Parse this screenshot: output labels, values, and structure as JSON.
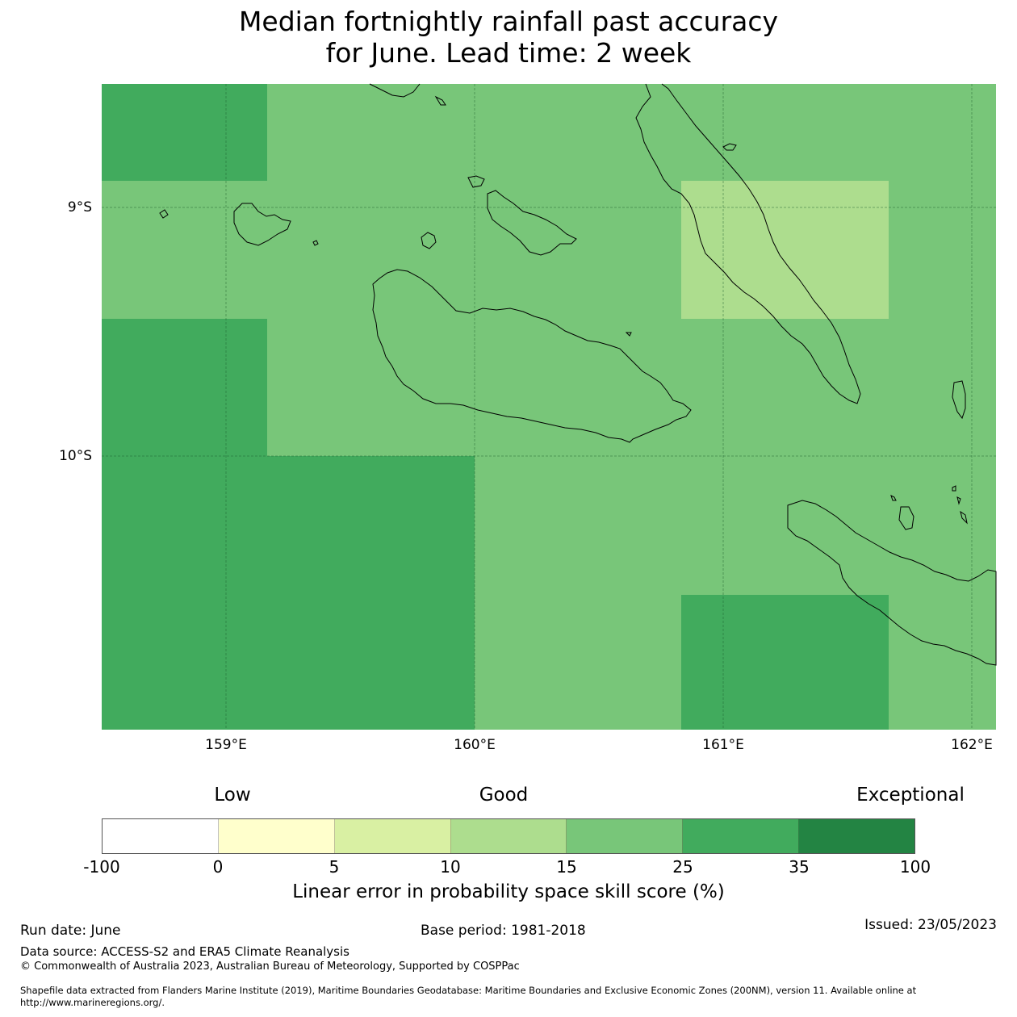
{
  "title": {
    "line1": "Median fortnightly rainfall past accuracy",
    "line2": "for June. Lead time: 2 week"
  },
  "map": {
    "lat_ticks": [
      "9°S",
      "10°S"
    ],
    "lon_ticks": [
      "159°E",
      "160°E",
      "161°E",
      "162°E"
    ]
  },
  "legend": {
    "categories": {
      "low": "Low",
      "good": "Good",
      "exceptional": "Exceptional"
    },
    "ticks": [
      "-100",
      "0",
      "5",
      "10",
      "15",
      "25",
      "35",
      "100"
    ],
    "colors": [
      "#ffffff",
      "#ffffcc",
      "#d9f0a3",
      "#addd8e",
      "#78c679",
      "#41ab5d",
      "#238443"
    ],
    "label": "Linear error in probability space skill score (%)"
  },
  "footer": {
    "run_date": "Run date: June",
    "base_period": "Base period: 1981-2018",
    "issued": "Issued: 23/05/2023",
    "data_source": "Data source: ACCESS-S2 and ERA5 Climate Reanalysis",
    "copyright": "© Commonwealth of Australia 2023, Australian Bureau of Meteorology, Supported by COSPPac",
    "shapefile_line1": "Shapefile data extracted from Flanders Marine Institute (2019), Maritime Boundaries Geodatabase: Maritime Boundaries and Exclusive Economic Zones (200NM), version 11. Available online at",
    "shapefile_line2": "http://www.marineregions.org/."
  }
}
